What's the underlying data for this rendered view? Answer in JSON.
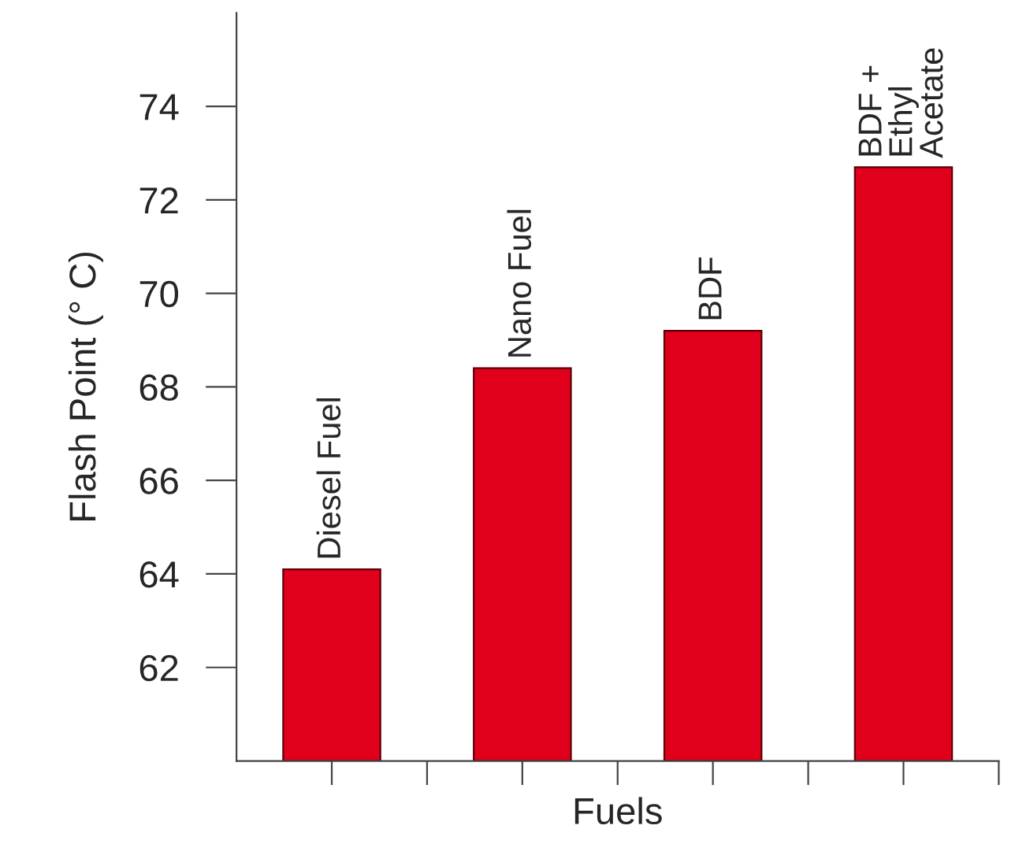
{
  "chart_data": {
    "type": "bar",
    "xlabel": "Fuels",
    "ylabel": "Flash Point (° C)",
    "categories": [
      "Diesel Fuel",
      "Nano Fuel",
      "BDF",
      "BDF +\nEthyl\nAcetate"
    ],
    "values": [
      64.1,
      68.4,
      69.2,
      72.7
    ],
    "color": "#e0001b",
    "ylim": [
      60,
      76
    ],
    "yticks": [
      62,
      64,
      66,
      68,
      70,
      72,
      74
    ],
    "grid": false,
    "legend": false
  }
}
